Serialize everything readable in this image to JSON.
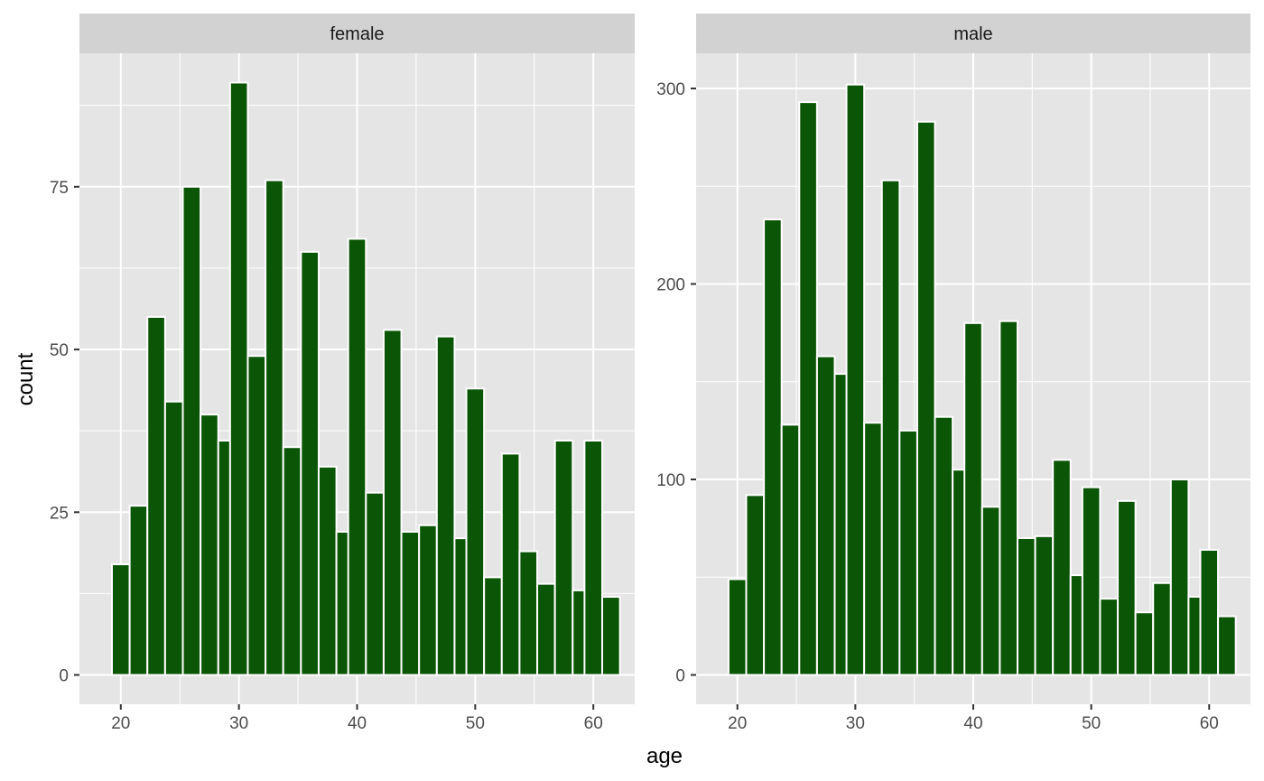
{
  "chart_data": {
    "type": "bar",
    "xlabel": "age",
    "ylabel": "count",
    "colors": {
      "bar_fill": "#0B5506",
      "bar_outline": "#FFFFFF",
      "panel_bg": "#E5E5E5",
      "strip_bg": "#D2D2D2",
      "grid": "#FFFFFF"
    },
    "panels": [
      {
        "label": "female",
        "xlim": [
          16.5,
          63.5
        ],
        "ylim": [
          -4.5,
          95.5
        ],
        "x_ticks": [
          20,
          30,
          40,
          50,
          60
        ],
        "y_ticks": [
          0,
          25,
          50,
          75
        ],
        "bins": [
          {
            "x": 20,
            "count": 17
          },
          {
            "x": 21.5,
            "count": 26
          },
          {
            "x": 23,
            "count": 55
          },
          {
            "x": 24.5,
            "count": 42
          },
          {
            "x": 26,
            "count": 75
          },
          {
            "x": 27.5,
            "count": 40
          },
          {
            "x": 29,
            "count": 36
          },
          {
            "x": 30,
            "count": 91
          },
          {
            "x": 31.5,
            "count": 49
          },
          {
            "x": 33,
            "count": 76
          },
          {
            "x": 34.5,
            "count": 35
          },
          {
            "x": 36,
            "count": 65
          },
          {
            "x": 37.5,
            "count": 32
          },
          {
            "x": 39,
            "count": 22
          },
          {
            "x": 40,
            "count": 67
          },
          {
            "x": 41.5,
            "count": 28
          },
          {
            "x": 43,
            "count": 53
          },
          {
            "x": 44.5,
            "count": 22
          },
          {
            "x": 46,
            "count": 23
          },
          {
            "x": 47.5,
            "count": 52
          },
          {
            "x": 49,
            "count": 21
          },
          {
            "x": 50,
            "count": 44
          },
          {
            "x": 51.5,
            "count": 15
          },
          {
            "x": 53,
            "count": 34
          },
          {
            "x": 54.5,
            "count": 19
          },
          {
            "x": 56,
            "count": 14
          },
          {
            "x": 57.5,
            "count": 36
          },
          {
            "x": 59,
            "count": 13
          },
          {
            "x": 60,
            "count": 36
          },
          {
            "x": 61.5,
            "count": 12
          }
        ]
      },
      {
        "label": "male",
        "xlim": [
          16.5,
          63.5
        ],
        "ylim": [
          -15,
          318
        ],
        "x_ticks": [
          20,
          30,
          40,
          50,
          60
        ],
        "y_ticks": [
          0,
          100,
          200,
          300
        ],
        "bins": [
          {
            "x": 20,
            "count": 49
          },
          {
            "x": 21.5,
            "count": 92
          },
          {
            "x": 23,
            "count": 233
          },
          {
            "x": 24.5,
            "count": 128
          },
          {
            "x": 26,
            "count": 293
          },
          {
            "x": 27.5,
            "count": 163
          },
          {
            "x": 29,
            "count": 154
          },
          {
            "x": 30,
            "count": 302
          },
          {
            "x": 31.5,
            "count": 129
          },
          {
            "x": 33,
            "count": 253
          },
          {
            "x": 34.5,
            "count": 125
          },
          {
            "x": 36,
            "count": 283
          },
          {
            "x": 37.5,
            "count": 132
          },
          {
            "x": 39,
            "count": 105
          },
          {
            "x": 40,
            "count": 180
          },
          {
            "x": 41.5,
            "count": 86
          },
          {
            "x": 43,
            "count": 181
          },
          {
            "x": 44.5,
            "count": 70
          },
          {
            "x": 46,
            "count": 71
          },
          {
            "x": 47.5,
            "count": 110
          },
          {
            "x": 49,
            "count": 51
          },
          {
            "x": 50,
            "count": 96
          },
          {
            "x": 51.5,
            "count": 39
          },
          {
            "x": 53,
            "count": 89
          },
          {
            "x": 54.5,
            "count": 32
          },
          {
            "x": 56,
            "count": 47
          },
          {
            "x": 57.5,
            "count": 100
          },
          {
            "x": 59,
            "count": 40
          },
          {
            "x": 60,
            "count": 64
          },
          {
            "x": 61.5,
            "count": 30
          }
        ]
      }
    ]
  }
}
